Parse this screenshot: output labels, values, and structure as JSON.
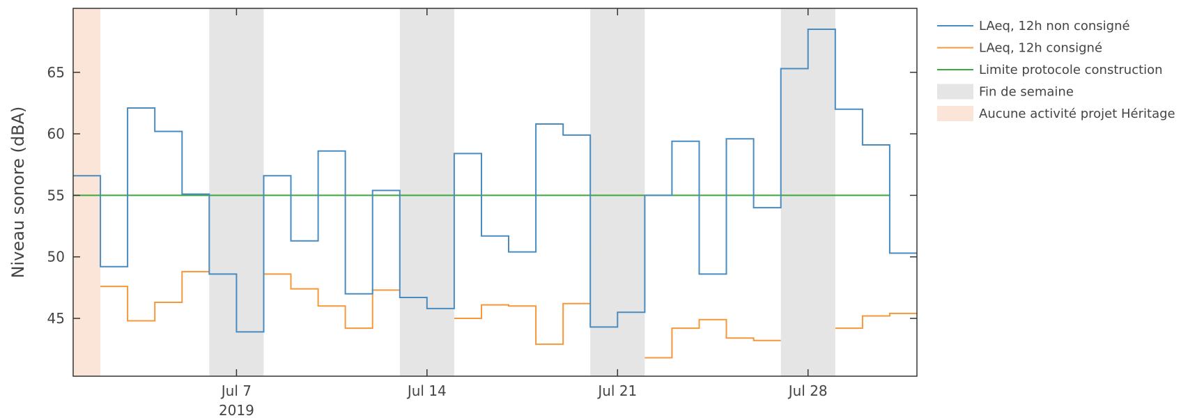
{
  "chart_data": {
    "type": "line",
    "ylabel": "Niveau sonore (dBA)",
    "xlabel": "",
    "x_start": "2019-07-01",
    "x_end": "2019-08-01",
    "xlim": [
      "2019-07-01",
      "2019-08-01"
    ],
    "ylim": [
      40.3,
      70.2
    ],
    "x_ticks": [
      {
        "date": "2019-07-07",
        "label": "Jul 7",
        "sublabel": "2019"
      },
      {
        "date": "2019-07-14",
        "label": "Jul 14",
        "sublabel": ""
      },
      {
        "date": "2019-07-21",
        "label": "Jul 21",
        "sublabel": ""
      },
      {
        "date": "2019-07-28",
        "label": "Jul 28",
        "sublabel": ""
      }
    ],
    "y_ticks": [
      45,
      50,
      55,
      60,
      65
    ],
    "step": "post",
    "series": [
      {
        "name": "LAeq, 12h non consigné",
        "color": "#4a8bbf",
        "points": [
          {
            "date": "2019-07-01",
            "value": 56.6
          },
          {
            "date": "2019-07-02",
            "value": 49.2
          },
          {
            "date": "2019-07-03",
            "value": 62.1
          },
          {
            "date": "2019-07-04",
            "value": 60.2
          },
          {
            "date": "2019-07-05",
            "value": 55.1
          },
          {
            "date": "2019-07-06",
            "value": 48.6
          },
          {
            "date": "2019-07-07",
            "value": 43.9
          },
          {
            "date": "2019-07-08",
            "value": 56.6
          },
          {
            "date": "2019-07-09",
            "value": 51.3
          },
          {
            "date": "2019-07-10",
            "value": 58.6
          },
          {
            "date": "2019-07-11",
            "value": 47.0
          },
          {
            "date": "2019-07-12",
            "value": 55.4
          },
          {
            "date": "2019-07-13",
            "value": 46.7
          },
          {
            "date": "2019-07-14",
            "value": 45.8
          },
          {
            "date": "2019-07-15",
            "value": 58.4
          },
          {
            "date": "2019-07-16",
            "value": 51.7
          },
          {
            "date": "2019-07-17",
            "value": 50.4
          },
          {
            "date": "2019-07-18",
            "value": 60.8
          },
          {
            "date": "2019-07-19",
            "value": 59.9
          },
          {
            "date": "2019-07-20",
            "value": 44.3
          },
          {
            "date": "2019-07-21",
            "value": 45.5
          },
          {
            "date": "2019-07-22",
            "value": 55.0
          },
          {
            "date": "2019-07-23",
            "value": 59.4
          },
          {
            "date": "2019-07-24",
            "value": 48.6
          },
          {
            "date": "2019-07-25",
            "value": 59.6
          },
          {
            "date": "2019-07-26",
            "value": 54.0
          },
          {
            "date": "2019-07-27",
            "value": 65.3
          },
          {
            "date": "2019-07-28",
            "value": 68.5
          },
          {
            "date": "2019-07-29",
            "value": 62.0
          },
          {
            "date": "2019-07-30",
            "value": 59.1
          },
          {
            "date": "2019-07-31",
            "value": 50.3
          }
        ]
      },
      {
        "name": "LAeq, 12h consigné",
        "color": "#f5973a",
        "segments": [
          [
            {
              "date": "2019-07-02",
              "value": 47.6
            },
            {
              "date": "2019-07-03",
              "value": 44.8
            },
            {
              "date": "2019-07-04",
              "value": 46.3
            },
            {
              "date": "2019-07-05",
              "value": 48.8
            }
          ],
          [
            {
              "date": "2019-07-08",
              "value": 48.6
            },
            {
              "date": "2019-07-09",
              "value": 47.4
            },
            {
              "date": "2019-07-10",
              "value": 46.0
            },
            {
              "date": "2019-07-11",
              "value": 44.2
            },
            {
              "date": "2019-07-12",
              "value": 47.3
            }
          ],
          [
            {
              "date": "2019-07-15",
              "value": 45.0
            },
            {
              "date": "2019-07-16",
              "value": 46.1
            },
            {
              "date": "2019-07-17",
              "value": 46.0
            },
            {
              "date": "2019-07-18",
              "value": 42.9
            },
            {
              "date": "2019-07-19",
              "value": 46.2
            }
          ],
          [
            {
              "date": "2019-07-22",
              "value": 41.8
            },
            {
              "date": "2019-07-23",
              "value": 44.2
            },
            {
              "date": "2019-07-24",
              "value": 44.9
            },
            {
              "date": "2019-07-25",
              "value": 43.4
            },
            {
              "date": "2019-07-26",
              "value": 43.2
            }
          ],
          [
            {
              "date": "2019-07-29",
              "value": 44.2
            },
            {
              "date": "2019-07-30",
              "value": 45.2
            },
            {
              "date": "2019-07-31",
              "value": 45.4
            }
          ]
        ]
      },
      {
        "name": "Limite protocole construction",
        "color": "#3aa83a",
        "line": {
          "from": "2019-07-01",
          "to": "2019-07-31",
          "value": 55
        }
      }
    ],
    "shaded_regions": [
      {
        "name": "Fin de semaine",
        "color": "#e5e5e5",
        "ranges": [
          [
            "2019-07-06",
            "2019-07-08"
          ],
          [
            "2019-07-13",
            "2019-07-15"
          ],
          [
            "2019-07-20",
            "2019-07-22"
          ],
          [
            "2019-07-27",
            "2019-07-29"
          ]
        ]
      },
      {
        "name": "Aucune activité projet Héritage",
        "color": "#fbe5d8",
        "ranges": [
          [
            "2019-07-01",
            "2019-07-02"
          ]
        ]
      }
    ],
    "legend": {
      "position": "right",
      "entries": [
        {
          "label": "LAeq, 12h non consigné",
          "kind": "line",
          "color": "#4a8bbf"
        },
        {
          "label": "LAeq, 12h consigné",
          "kind": "line",
          "color": "#f5973a"
        },
        {
          "label": "Limite protocole construction",
          "kind": "line",
          "color": "#3aa83a"
        },
        {
          "label": "Fin de semaine",
          "kind": "patch",
          "color": "#e5e5e5"
        },
        {
          "label": "Aucune activité projet Héritage",
          "kind": "patch",
          "color": "#fbe5d8"
        }
      ]
    },
    "grid": false
  }
}
